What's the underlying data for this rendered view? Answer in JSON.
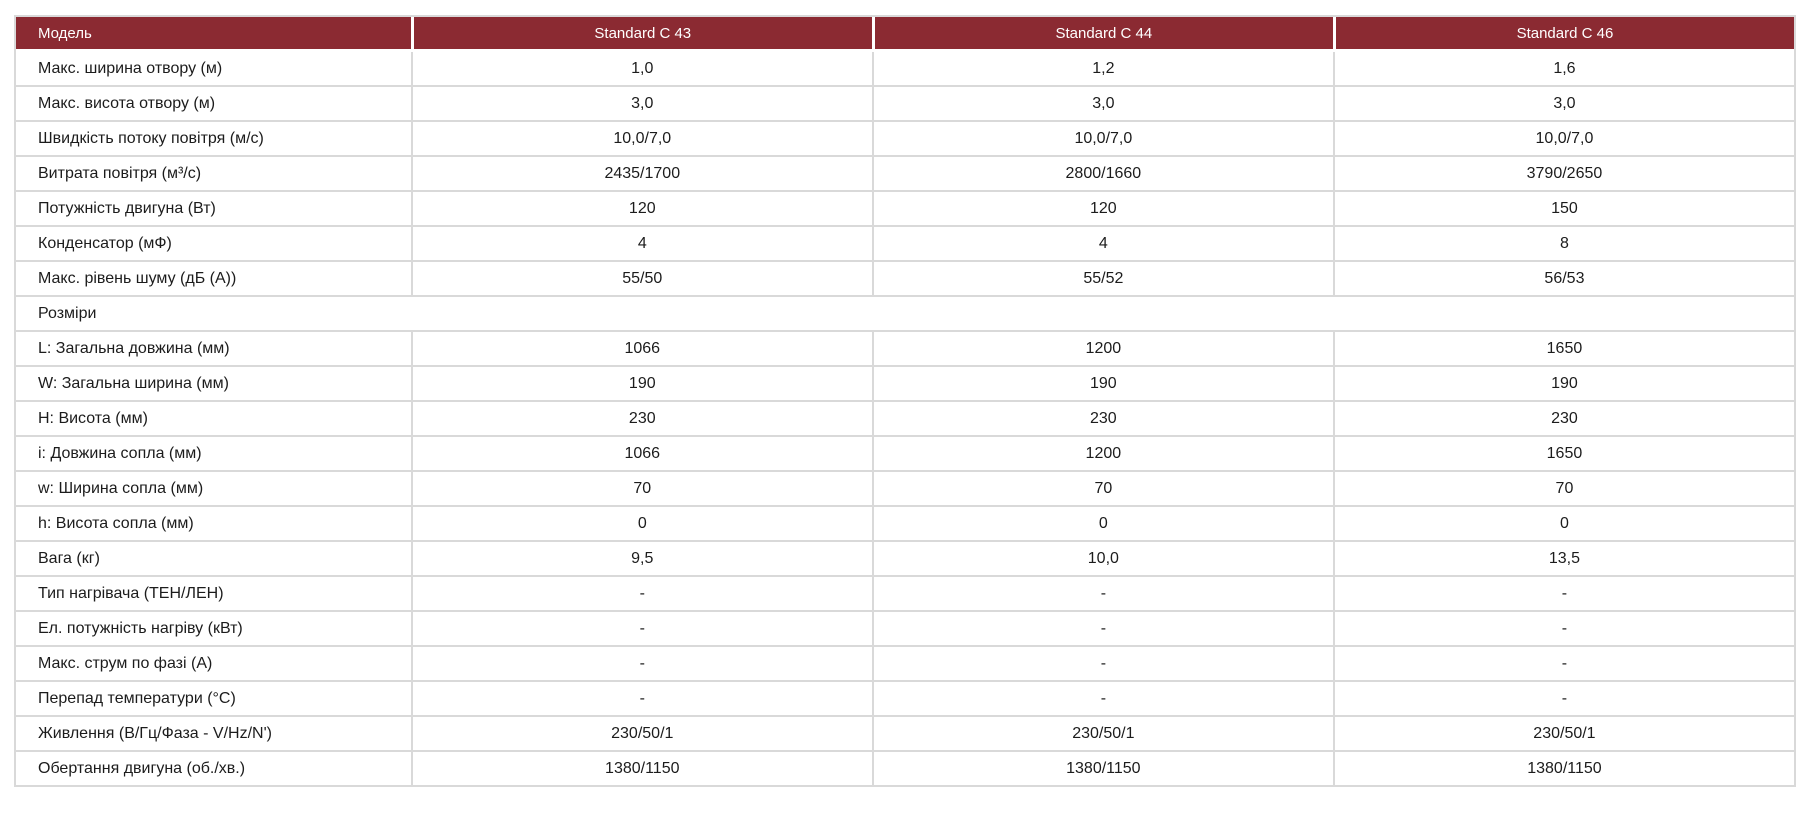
{
  "colors": {
    "header_bg": "#8b2a32",
    "header_text": "#ffffff",
    "border": "#d9d9d9",
    "text": "#1c1c1c"
  },
  "table": {
    "header": [
      "Модель",
      "Standard C 43",
      "Standard C 44",
      "Standard C 46"
    ],
    "rows": [
      {
        "label": "Макс. ширина отвору (м)",
        "values": [
          "1,0",
          "1,2",
          "1,6"
        ]
      },
      {
        "label": "Макс. висота отвору (м)",
        "values": [
          "3,0",
          "3,0",
          "3,0"
        ]
      },
      {
        "label": "Швидкість потоку повітря (м/с)",
        "values": [
          "10,0/7,0",
          "10,0/7,0",
          "10,0/7,0"
        ]
      },
      {
        "label": "Витрата повітря (м³/с)",
        "values": [
          "2435/1700",
          "2800/1660",
          "3790/2650"
        ]
      },
      {
        "label": "Потужність двигуна (Вт)",
        "values": [
          "120",
          "120",
          "150"
        ]
      },
      {
        "label": "Конденсатор (мФ)",
        "values": [
          "4",
          "4",
          "8"
        ]
      },
      {
        "label": "Макс. рівень шуму (дБ (А))",
        "values": [
          "55/50",
          "55/52",
          "56/53"
        ]
      },
      {
        "label": "Розміри",
        "section": true
      },
      {
        "label": "L: Загальна довжина (мм)",
        "values": [
          "1066",
          "1200",
          "1650"
        ]
      },
      {
        "label": "W: Загальна ширина (мм)",
        "values": [
          "190",
          "190",
          "190"
        ]
      },
      {
        "label": "H: Висота (мм)",
        "values": [
          "230",
          "230",
          "230"
        ]
      },
      {
        "label": "i: Довжина сопла (мм)",
        "values": [
          "1066",
          "1200",
          "1650"
        ]
      },
      {
        "label": "w: Ширина сопла (мм)",
        "values": [
          "70",
          "70",
          "70"
        ]
      },
      {
        "label": "h: Висота сопла (мм)",
        "values": [
          "0",
          "0",
          "0"
        ]
      },
      {
        "label": "Вага (кг)",
        "values": [
          "9,5",
          "10,0",
          "13,5"
        ]
      },
      {
        "label": "Тип нагрівача (ТЕН/ЛЕН)",
        "values": [
          "-",
          "-",
          "-"
        ]
      },
      {
        "label": "Ел. потужність нагріву (кВт)",
        "values": [
          "-",
          "-",
          "-"
        ]
      },
      {
        "label": "Макс. струм по фазі (А)",
        "values": [
          "-",
          "-",
          "-"
        ]
      },
      {
        "label": "Перепад температури (°С)",
        "values": [
          "-",
          "-",
          "-"
        ]
      },
      {
        "label": "Живлення (В/Гц/Фаза - V/Hz/N')",
        "values": [
          "230/50/1",
          "230/50/1",
          "230/50/1"
        ]
      },
      {
        "label": "Обертання двигуна (об./хв.)",
        "values": [
          "1380/1150",
          "1380/1150",
          "1380/1150"
        ]
      }
    ]
  }
}
